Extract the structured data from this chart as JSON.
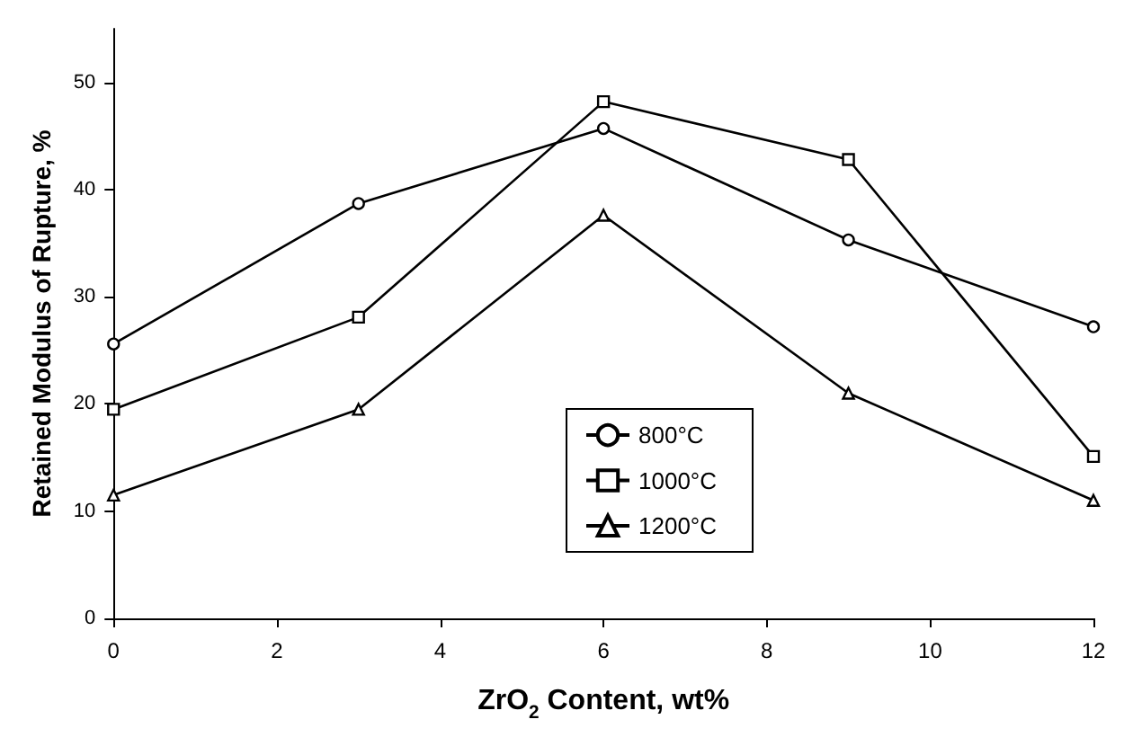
{
  "chart_data": {
    "type": "line",
    "xlabel": "ZrO$_{2}$ Content, wt%",
    "ylabel": "Retained Modulus of Rupture, %",
    "x": [
      0,
      3,
      6,
      9,
      12
    ],
    "series": [
      {
        "name": "800°C",
        "color": "#000000",
        "marker": "circle",
        "values": [
          25.6,
          38.7,
          45.7,
          35.3,
          27.2
        ]
      },
      {
        "name": "1000°C",
        "color": "#000000",
        "marker": "square",
        "values": [
          19.5,
          28.1,
          48.2,
          42.8,
          15.1
        ]
      },
      {
        "name": "1200°C",
        "color": "#000000",
        "marker": "triangle",
        "values": [
          11.5,
          19.5,
          37.6,
          21.0,
          11.0
        ]
      }
    ],
    "xlim": [
      0,
      12
    ],
    "xticks": [
      0,
      2,
      4,
      6,
      8,
      10,
      12
    ],
    "ylim": [
      0,
      55
    ],
    "yticks": [
      0,
      10,
      20,
      30,
      40,
      50
    ],
    "grid": false,
    "legend": "center",
    "line_style": "solid"
  }
}
